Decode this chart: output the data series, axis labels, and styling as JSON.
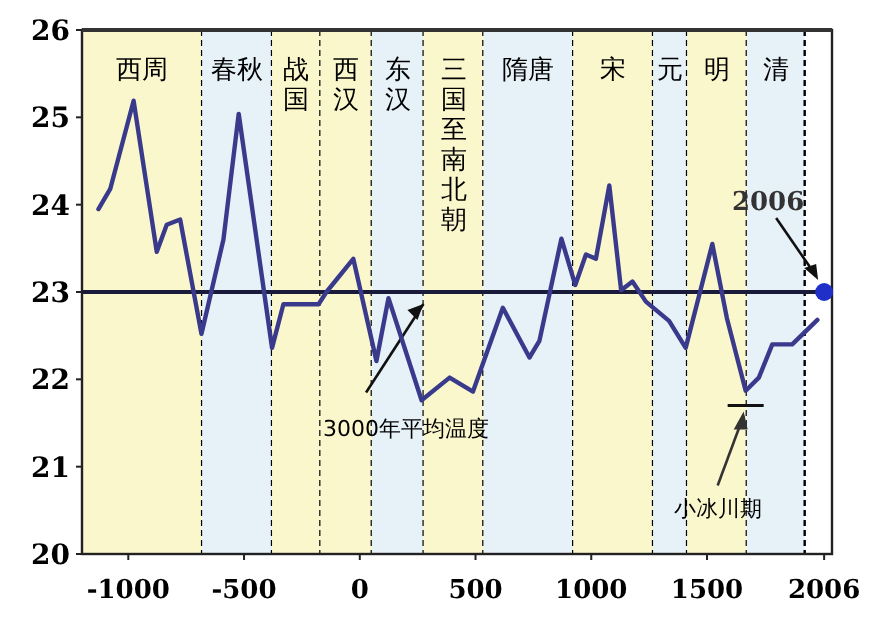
{
  "chart_data": {
    "type": "line",
    "xlim": [
      -1200,
      2040
    ],
    "ylim": [
      20,
      26
    ],
    "xticks": [
      -1000,
      -500,
      0,
      500,
      1000,
      1500,
      2006
    ],
    "yticks": [
      20,
      21,
      22,
      23,
      24,
      25,
      26
    ],
    "series": [
      {
        "color": "#3a3a8c",
        "x": [
          -1129,
          -1078,
          -977,
          -877,
          -834,
          -776,
          -684,
          -589,
          -523,
          -379,
          -330,
          -178,
          -144,
          -28,
          72,
          124,
          267,
          388,
          489,
          618,
          733,
          776,
          871,
          931,
          977,
          1020,
          1078,
          1129,
          1178,
          1236,
          1336,
          1408,
          1523,
          1586,
          1667,
          1724,
          1782,
          1868,
          1977
        ],
        "values": [
          23.95,
          24.18,
          25.19,
          23.46,
          23.77,
          23.83,
          22.52,
          23.6,
          25.04,
          22.36,
          22.86,
          22.86,
          23.0,
          23.38,
          22.21,
          22.93,
          21.76,
          22.02,
          21.86,
          22.82,
          22.25,
          22.44,
          23.61,
          23.08,
          23.43,
          23.38,
          24.22,
          23.02,
          23.12,
          22.89,
          22.67,
          22.36,
          23.55,
          22.7,
          21.87,
          22.02,
          22.4,
          22.4,
          22.68
        ]
      },
      {
        "type": "scatter",
        "color": "#1f2fc8",
        "x": [
          2006
        ],
        "values": [
          23.0
        ]
      }
    ],
    "ref_lines": [
      {
        "axis": "y",
        "value": 23,
        "label": "3000年平均温度",
        "color": "#1a1a3a"
      }
    ],
    "bands": [
      {
        "axis": "x",
        "from": -1200,
        "to": -681,
        "label": "西周",
        "color": "#fbf7cc"
      },
      {
        "axis": "x",
        "from": -681,
        "to": -379,
        "label": "春秋",
        "color": "#e6f1f8"
      },
      {
        "axis": "x",
        "from": -379,
        "to": -170,
        "label": "战国",
        "color": "#fbf7cc"
      },
      {
        "axis": "x",
        "from": -170,
        "to": 52,
        "label": "西汉",
        "color": "#fbf7cc"
      },
      {
        "axis": "x",
        "from": 52,
        "to": 276,
        "label": "东汉",
        "color": "#e6f1f8"
      },
      {
        "axis": "x",
        "from": 276,
        "to": 534,
        "label": "三国至南北朝",
        "color": "#fbf7cc"
      },
      {
        "axis": "x",
        "from": 534,
        "to": 922,
        "label": "隋唐",
        "color": "#e6f1f8"
      },
      {
        "axis": "x",
        "from": 922,
        "to": 1267,
        "label": "宋",
        "color": "#fbf7cc"
      },
      {
        "axis": "x",
        "from": 1267,
        "to": 1414,
        "label": "元",
        "color": "#e6f1f8"
      },
      {
        "axis": "x",
        "from": 1414,
        "to": 1672,
        "label": "明",
        "color": "#fbf7cc"
      },
      {
        "axis": "x",
        "from": 1672,
        "to": 1922,
        "label": "清",
        "color": "#e6f1f8"
      }
    ],
    "annotations": [
      {
        "text": "2006",
        "x": 2006,
        "y": 23.0
      },
      {
        "text": "小冰川期",
        "x": 1667,
        "y": 21.7
      }
    ],
    "grid": false
  }
}
